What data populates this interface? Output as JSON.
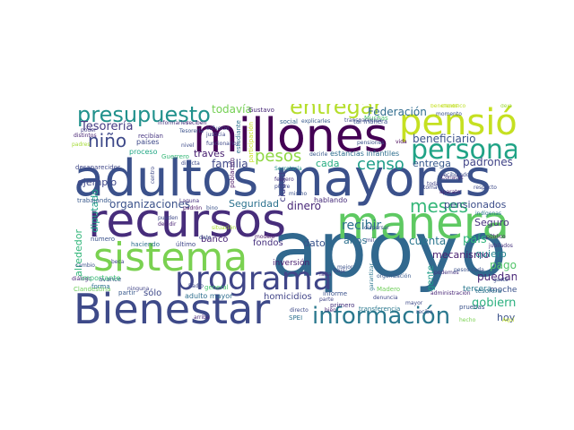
{
  "words": [
    {
      "text": "apoyo",
      "color": "#31688e"
    },
    {
      "text": "adultos mayores",
      "color": "#3b518b"
    },
    {
      "text": "recursos",
      "color": "#472d7b"
    },
    {
      "text": "manera",
      "color": "#5ec962"
    },
    {
      "text": "millones",
      "color": "#440154"
    },
    {
      "text": "Bienestar",
      "color": "#3e4a89"
    },
    {
      "text": "programa",
      "color": "#404688"
    },
    {
      "text": "sistema",
      "color": "#7ad151"
    },
    {
      "text": "pensión",
      "color": "#c5e021"
    },
    {
      "text": "persona",
      "color": "#20a386"
    },
    {
      "text": "información",
      "color": "#2a788e"
    },
    {
      "text": "presupuesto",
      "color": "#21918c"
    },
    {
      "text": "entregar",
      "color": "#b5de2b"
    },
    {
      "text": "censo",
      "color": "#1f9e89"
    },
    {
      "text": "pesos",
      "color": "#8fd744"
    },
    {
      "text": "meses",
      "color": "#35b779"
    },
    {
      "text": "niño",
      "color": "#3e4989"
    },
    {
      "text": "Tesorería",
      "color": "#443a83"
    },
    {
      "text": "organizaciones",
      "color": "#3b528b"
    },
    {
      "text": "Seguridad",
      "color": "#2c728e"
    },
    {
      "text": "beneficiario",
      "color": "#3b528b"
    },
    {
      "text": "Federación",
      "color": "#2f6c8e"
    },
    {
      "text": "todavía",
      "color": "#75d054"
    },
    {
      "text": "dinero",
      "color": "#482878"
    },
    {
      "text": "recibir",
      "color": "#2d708e"
    },
    {
      "text": "familia",
      "color": "#3f4788"
    },
    {
      "text": "cada",
      "color": "#26ad81"
    },
    {
      "text": "entrega",
      "color": "#38598c"
    },
    {
      "text": "padrones",
      "color": "#414487"
    },
    {
      "text": "pensionados",
      "color": "#3d4e8a"
    },
    {
      "text": "Seguro",
      "color": "#46327e"
    },
    {
      "text": "cuenta",
      "color": "#2a768e"
    },
    {
      "text": "país",
      "color": "#2fb47c"
    },
    {
      "text": "mecanismo",
      "color": "#481f70"
    },
    {
      "text": "quiero",
      "color": "#25858e"
    },
    {
      "text": "pago",
      "color": "#52c569"
    },
    {
      "text": "puedan",
      "color": "#482677"
    },
    {
      "text": "gobierno",
      "color": "#2ab07f"
    },
    {
      "text": "hoy",
      "color": "#3b528b"
    },
    {
      "text": "ejemplo",
      "color": "#3f4889"
    },
    {
      "text": "diputado",
      "color": "#1fa188"
    },
    {
      "text": "alrededor",
      "color": "#32b67a"
    },
    {
      "text": "banco",
      "color": "#482475"
    },
    {
      "text": "fondos",
      "color": "#46307e"
    },
    {
      "text": "dato",
      "color": "#3a538b"
    },
    {
      "text": "años",
      "color": "#2d708e"
    },
    {
      "text": "homicidios",
      "color": "#404387"
    },
    {
      "text": "sólo",
      "color": "#3e4989"
    },
    {
      "text": "ciudad",
      "color": "#433e85"
    },
    {
      "text": "inversión",
      "color": "#481c6e"
    },
    {
      "text": "gente",
      "color": "#1e9c89"
    },
    {
      "text": "tercera",
      "color": "#2a788e"
    },
    {
      "text": "moche",
      "color": "#3b528b"
    },
    {
      "text": "través",
      "color": "#482071"
    },
    {
      "text": "estancias infantiles",
      "color": "#2e6e8e"
    },
    {
      "text": "hablando",
      "color": "#472c7a"
    },
    {
      "text": "recibiendo",
      "color": "#3e4c8a"
    },
    {
      "text": "indígenas",
      "color": "#2b748e"
    },
    {
      "text": "jubilados",
      "color": "#46327e"
    },
    {
      "text": "público",
      "color": "#471365"
    },
    {
      "text": "Gustavo",
      "color": "#482979"
    },
    {
      "text": "Muchas",
      "color": "#4ac16d"
    },
    {
      "text": "tal manera",
      "color": "#3a548c"
    },
    {
      "text": "social",
      "color": "#33638d"
    },
    {
      "text": "explicarles",
      "color": "#38598c"
    },
    {
      "text": "científico",
      "color": "#bddf26"
    },
    {
      "text": "momento",
      "color": "#3b518b"
    },
    {
      "text": "informarles",
      "color": "#46337f"
    },
    {
      "text": "reciben",
      "color": "#482173"
    },
    {
      "text": "estudiante",
      "color": "#2d708e"
    },
    {
      "text": "participación",
      "color": "#c8e020"
    },
    {
      "text": "decirle",
      "color": "#38588c"
    },
    {
      "text": "pensiones",
      "color": "#3b528b"
    },
    {
      "text": "vida",
      "color": "#440154"
    },
    {
      "text": "distintos",
      "color": "#482475"
    },
    {
      "text": "poder",
      "color": "#433d84"
    },
    {
      "text": "esfuerzo",
      "color": "#3d4d8a"
    },
    {
      "text": "padres",
      "color": "#a5db36"
    },
    {
      "text": "países",
      "color": "#3e4989"
    },
    {
      "text": "justicia",
      "color": "#3f4788"
    },
    {
      "text": "Guerrero",
      "color": "#37b878"
    },
    {
      "text": "proceso",
      "color": "#22a785"
    },
    {
      "text": "funcionarios",
      "color": "#3f4788"
    },
    {
      "text": "nivel",
      "color": "#3e4a89"
    },
    {
      "text": "recibían",
      "color": "#463480"
    },
    {
      "text": "población",
      "color": "#481467"
    },
    {
      "text": "Radio",
      "color": "#3f4788"
    },
    {
      "text": "padrón",
      "color": "#471063"
    },
    {
      "text": "bino",
      "color": "#3b528b"
    },
    {
      "text": "Laguna",
      "color": "#46307e"
    },
    {
      "text": "directa",
      "color": "#3e4a89"
    },
    {
      "text": "desaparecidos",
      "color": "#3f4788"
    },
    {
      "text": "trabajando",
      "color": "#38598c"
    },
    {
      "text": "número",
      "color": "#3b528b"
    },
    {
      "text": "haciendo",
      "color": "#2e6f8e"
    },
    {
      "text": "último",
      "color": "#3f4889"
    },
    {
      "text": "cambio",
      "color": "#3b528b"
    },
    {
      "text": "diálogo",
      "color": "#482576"
    },
    {
      "text": "avance",
      "color": "#3b528b"
    },
    {
      "text": "Clandestina",
      "color": "#6ccd5a"
    },
    {
      "text": "forma",
      "color": "#2c738e"
    },
    {
      "text": "partir",
      "color": "#38598c"
    },
    {
      "text": "ninguna",
      "color": "#414487"
    },
    {
      "text": "adulto mayor",
      "color": "#2e6e8e"
    },
    {
      "text": "general",
      "color": "#48c16e"
    },
    {
      "text": "importante",
      "color": "#3aba76"
    },
    {
      "text": "beca",
      "color": "#3f4788"
    },
    {
      "text": "modelo",
      "color": "#471365"
    },
    {
      "text": "directo",
      "color": "#3e4a89"
    },
    {
      "text": "SPEI",
      "color": "#2d708e"
    },
    {
      "text": "arriba",
      "color": "#482878"
    },
    {
      "text": "informe",
      "color": "#3b528b"
    },
    {
      "text": "primero",
      "color": "#46327e"
    },
    {
      "text": "transferencia",
      "color": "#2a788e"
    },
    {
      "text": "Madero",
      "color": "#6ece58"
    },
    {
      "text": "denuncia",
      "color": "#3f4788"
    },
    {
      "text": "mayor",
      "color": "#3e4a89"
    },
    {
      "text": "pruebas",
      "color": "#3b528b"
    },
    {
      "text": "hecho",
      "color": "#7ad151"
    },
    {
      "text": "Aquí",
      "color": "#c2df23"
    },
    {
      "text": "tesorera",
      "color": "#2c728e"
    },
    {
      "text": "administración",
      "color": "#482576"
    },
    {
      "text": "falta",
      "color": "#46337f"
    },
    {
      "text": "baja",
      "color": "#3f4788"
    },
    {
      "text": "bien",
      "color": "#482475"
    },
    {
      "text": "parte",
      "color": "#414487"
    },
    {
      "text": "mejor",
      "color": "#3b528b"
    },
    {
      "text": "dispersar",
      "color": "#3b518b"
    },
    {
      "text": "toda",
      "color": "#414487"
    },
    {
      "text": "respecto",
      "color": "#3e4a89"
    },
    {
      "text": "aparato",
      "color": "#482173"
    },
    {
      "text": "Conacyt",
      "color": "#472e7c"
    },
    {
      "text": "toma",
      "color": "#3f4788"
    },
    {
      "text": "febrero",
      "color": "#46327e"
    },
    {
      "text": "pobre",
      "color": "#3e4989"
    },
    {
      "text": "mismo",
      "color": "#3b528b"
    },
    {
      "text": "Secretaría",
      "color": "#21918c"
    },
    {
      "text": "situación",
      "color": "#a8db34"
    },
    {
      "text": "beneficios",
      "color": "#c6e021"
    },
    {
      "text": "pueden",
      "color": "#3e4989"
    },
    {
      "text": "decidir",
      "color": "#482173"
    },
    {
      "text": "podemos",
      "color": "#46327e"
    },
    {
      "text": "pesos cada",
      "color": "#3b528b"
    },
    {
      "text": "gasto",
      "color": "#3b528b"
    },
    {
      "text": "centro",
      "color": "#3e4989"
    },
    {
      "text": "transparencia",
      "color": "#3e4a89"
    },
    {
      "text": "garantizar",
      "color": "#2b758e"
    },
    {
      "text": "organización",
      "color": "#38598c"
    },
    {
      "text": "recibe",
      "color": "#3b528b"
    },
    {
      "text": "mil",
      "color": "#414487"
    },
    {
      "text": "dato",
      "color": "#3b528b"
    },
    {
      "text": "deja",
      "color": "#9fda3a"
    },
    {
      "text": "Tesorería",
      "color": "#3b528b"
    }
  ]
}
